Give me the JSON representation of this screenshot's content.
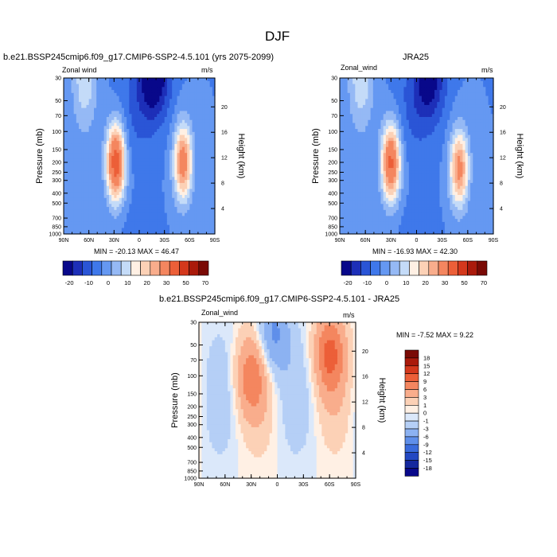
{
  "figure_title": "DJF",
  "chart_data": [
    {
      "type": "heatmap",
      "title": "b.e21.BSSP245cmip6.f09_g17.CMIP6-SSP2-4.5.101 (yrs 2075-2099)",
      "left_string": "Zonal wind",
      "right_string": "m/s",
      "xlabel": "",
      "ylabel": "Pressure (mb)",
      "y2label": "Height (km)",
      "x_ticks": [
        "90N",
        "60N",
        "30N",
        "0",
        "30S",
        "60S",
        "90S"
      ],
      "y_ticks": [
        "30",
        "50",
        "70",
        "100",
        "150",
        "200",
        "250",
        "300",
        "400",
        "500",
        "700",
        "850",
        "1000"
      ],
      "y2_ticks": [
        "20",
        "16",
        "12",
        "8",
        "4"
      ],
      "stats": "MIN = -20.13  MAX =  46.47",
      "min": -20.13,
      "max": 46.47,
      "colorbar": {
        "labels": [
          "-20",
          "-10",
          "0",
          "10",
          "20",
          "30",
          "50",
          "70"
        ],
        "colors": [
          "#08088a",
          "#1d2fb8",
          "#2a55d6",
          "#3f78ea",
          "#6598f2",
          "#95b9f5",
          "#c4dbf8",
          "#fff0e4",
          "#fcd1b6",
          "#f9ad8c",
          "#f4865f",
          "#ec5f38",
          "#d4381c",
          "#aa1a0b",
          "#7a0a05"
        ]
      },
      "features": [
        {
          "kind": "westerly jet",
          "lat": 28,
          "level_mb": 200,
          "peak_ms": 46
        },
        {
          "kind": "westerly jet",
          "lat": -52,
          "level_mb": 200,
          "peak_ms": 35
        },
        {
          "kind": "easterly core",
          "lat": -18,
          "level_mb": 30,
          "peak_ms": -20
        }
      ]
    },
    {
      "type": "heatmap",
      "title": "JRA25",
      "left_string": "Zonal_wind",
      "right_string": "m/s",
      "xlabel": "",
      "ylabel": "Pressure (mb)",
      "y2label": "Height (km)",
      "x_ticks": [
        "90N",
        "60N",
        "30N",
        "0",
        "30S",
        "60S",
        "90S"
      ],
      "y_ticks": [
        "30",
        "50",
        "70",
        "100",
        "150",
        "200",
        "250",
        "300",
        "400",
        "500",
        "700",
        "850",
        "1000"
      ],
      "y2_ticks": [
        "20",
        "16",
        "12",
        "8",
        "4"
      ],
      "stats": "MIN = -16.93  MAX =  42.30",
      "min": -16.93,
      "max": 42.3,
      "colorbar": {
        "labels": [
          "-20",
          "-10",
          "0",
          "10",
          "20",
          "30",
          "50",
          "70"
        ],
        "colors": [
          "#08088a",
          "#1d2fb8",
          "#2a55d6",
          "#3f78ea",
          "#6598f2",
          "#95b9f5",
          "#c4dbf8",
          "#fff0e4",
          "#fcd1b6",
          "#f9ad8c",
          "#f4865f",
          "#ec5f38",
          "#d4381c",
          "#aa1a0b",
          "#7a0a05"
        ]
      },
      "features": [
        {
          "kind": "westerly jet",
          "lat": 30,
          "level_mb": 200,
          "peak_ms": 42
        },
        {
          "kind": "westerly jet",
          "lat": -50,
          "level_mb": 230,
          "peak_ms": 33
        },
        {
          "kind": "easterly core",
          "lat": -15,
          "level_mb": 30,
          "peak_ms": -17
        }
      ]
    },
    {
      "type": "heatmap",
      "title": "b.e21.BSSP245cmip6.f09_g17.CMIP6-SSP2-4.5.101 - JRA25",
      "left_string": "Zonal_wind",
      "right_string": "m/s",
      "xlabel": "",
      "ylabel": "Pressure (mb)",
      "y2label": "Height (km)",
      "x_ticks": [
        "90N",
        "60N",
        "30N",
        "0",
        "30S",
        "60S",
        "90S"
      ],
      "y_ticks": [
        "30",
        "50",
        "70",
        "100",
        "150",
        "200",
        "250",
        "300",
        "400",
        "500",
        "700",
        "850",
        "1000"
      ],
      "y2_ticks": [
        "20",
        "16",
        "12",
        "8",
        "4"
      ],
      "stats": "MIN =  -7.52  MAX =   9.22",
      "min": -7.52,
      "max": 9.22,
      "colorbar": {
        "labels": [
          "18",
          "15",
          "12",
          "9",
          "6",
          "3",
          "1",
          "0",
          "-1",
          "-3",
          "-6",
          "-9",
          "-12",
          "-15",
          "-18"
        ],
        "colors": [
          "#7a0a05",
          "#aa1a0b",
          "#d4381c",
          "#ec5f38",
          "#f4865f",
          "#f9ad8c",
          "#fcd1b6",
          "#fff0e4",
          "#dbe8fa",
          "#b5cff6",
          "#8cb2f2",
          "#5f8fea",
          "#3a6bdc",
          "#2348c2",
          "#14289e",
          "#08088a"
        ]
      },
      "features": [
        {
          "kind": "positive difference",
          "lat": -60,
          "level_mb": 60,
          "peak_ms": 9
        },
        {
          "kind": "positive difference",
          "lat": 30,
          "level_mb": 100,
          "peak_ms": 7
        },
        {
          "kind": "negative difference",
          "lat": 5,
          "level_mb": 40,
          "peak_ms": -7
        }
      ]
    }
  ]
}
